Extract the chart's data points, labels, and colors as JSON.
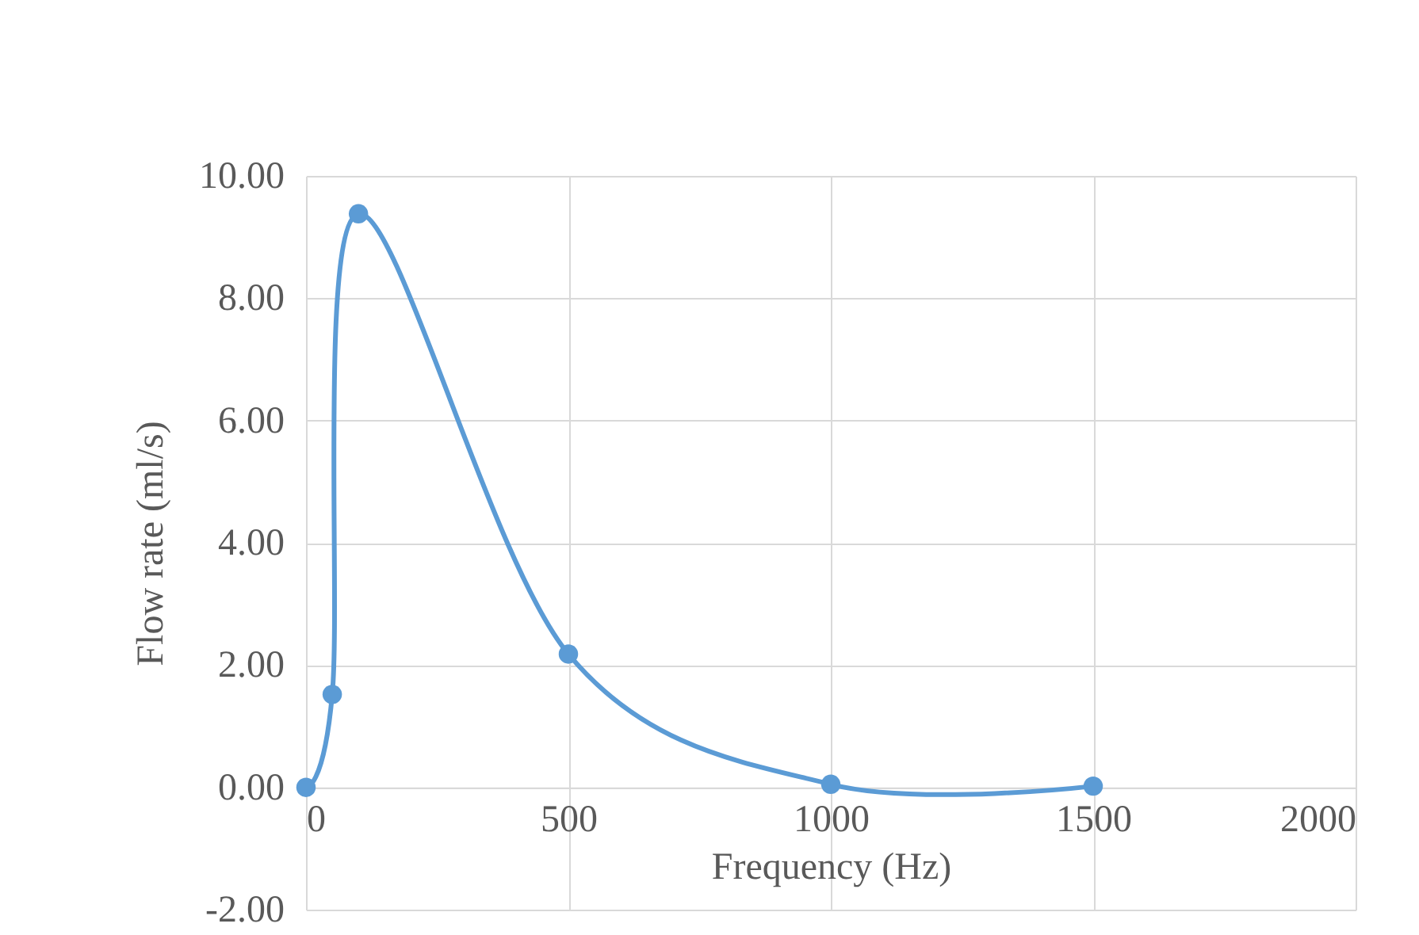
{
  "chart_data": {
    "type": "line",
    "xlabel": "Frequency (Hz)",
    "ylabel": "Flow rate (ml/s)",
    "x": [
      0,
      50,
      100,
      500,
      1000,
      1500
    ],
    "series": [
      {
        "color": "#5b9bd5",
        "values": [
          0.0,
          1.52,
          9.38,
          2.18,
          0.05,
          0.02
        ]
      }
    ],
    "xlim": [
      0,
      2000
    ],
    "xticks": [
      0,
      500,
      1000,
      1500,
      2000
    ],
    "ylim": [
      -2,
      10
    ],
    "yticks": [
      {
        "value": -2,
        "label": "-2.00"
      },
      {
        "value": 0,
        "label": "0.00"
      },
      {
        "value": 2,
        "label": "2.00"
      },
      {
        "value": 4,
        "label": "4.00"
      },
      {
        "value": 6,
        "label": "6.00"
      },
      {
        "value": 8,
        "label": "8.00"
      },
      {
        "value": 10,
        "label": "10.00"
      }
    ],
    "grid": true,
    "marker": "circle",
    "line_style": "solid"
  }
}
